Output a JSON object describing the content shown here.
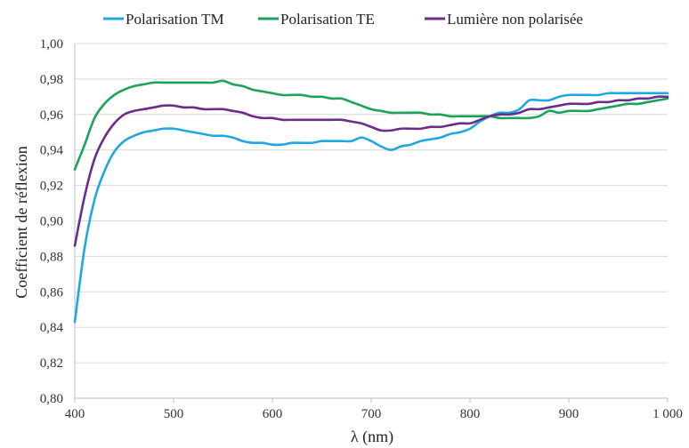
{
  "chart_data": {
    "type": "line",
    "title": "",
    "xlabel": "λ (nm)",
    "ylabel": "Coefficient de réflexion",
    "xlim": [
      400,
      1000
    ],
    "ylim": [
      0.8,
      1.0
    ],
    "x_ticks": [
      400,
      500,
      600,
      700,
      800,
      900,
      1000
    ],
    "x_tick_labels": [
      "400",
      "500",
      "600",
      "700",
      "800",
      "900",
      "1 000"
    ],
    "y_ticks": [
      0.8,
      0.82,
      0.84,
      0.86,
      0.88,
      0.9,
      0.92,
      0.94,
      0.96,
      0.98,
      1.0
    ],
    "y_tick_labels": [
      "0,80",
      "0,82",
      "0,84",
      "0,86",
      "0,88",
      "0,90",
      "0,92",
      "0,94",
      "0,96",
      "0,98",
      "1,00"
    ],
    "grid": "horizontal",
    "legend_position": "top",
    "series": [
      {
        "name": "Polarisation TM",
        "color": "#1fa8e0",
        "x": [
          400,
          410,
          420,
          430,
          440,
          450,
          460,
          470,
          480,
          490,
          500,
          510,
          520,
          530,
          540,
          550,
          560,
          570,
          580,
          590,
          600,
          610,
          620,
          630,
          640,
          650,
          660,
          670,
          680,
          690,
          700,
          710,
          720,
          730,
          740,
          750,
          760,
          770,
          780,
          790,
          800,
          810,
          820,
          830,
          840,
          850,
          860,
          870,
          880,
          890,
          900,
          910,
          920,
          930,
          940,
          950,
          960,
          970,
          980,
          990,
          1000
        ],
        "y": [
          0.843,
          0.885,
          0.912,
          0.928,
          0.939,
          0.945,
          0.948,
          0.95,
          0.951,
          0.952,
          0.952,
          0.951,
          0.95,
          0.949,
          0.948,
          0.948,
          0.947,
          0.945,
          0.944,
          0.944,
          0.943,
          0.943,
          0.944,
          0.944,
          0.944,
          0.945,
          0.945,
          0.945,
          0.945,
          0.947,
          0.945,
          0.942,
          0.94,
          0.942,
          0.943,
          0.945,
          0.946,
          0.947,
          0.949,
          0.95,
          0.952,
          0.956,
          0.959,
          0.961,
          0.961,
          0.963,
          0.968,
          0.968,
          0.968,
          0.97,
          0.971,
          0.971,
          0.971,
          0.971,
          0.972,
          0.972,
          0.972,
          0.972,
          0.972,
          0.972,
          0.972
        ]
      },
      {
        "name": "Polarisation TE",
        "color": "#1aa35a",
        "x": [
          400,
          410,
          420,
          430,
          440,
          450,
          460,
          470,
          480,
          490,
          500,
          510,
          520,
          530,
          540,
          550,
          560,
          570,
          580,
          590,
          600,
          610,
          620,
          630,
          640,
          650,
          660,
          670,
          680,
          690,
          700,
          710,
          720,
          730,
          740,
          750,
          760,
          770,
          780,
          790,
          800,
          810,
          820,
          830,
          840,
          850,
          860,
          870,
          880,
          890,
          900,
          910,
          920,
          930,
          940,
          950,
          960,
          970,
          980,
          990,
          1000
        ],
        "y": [
          0.929,
          0.943,
          0.958,
          0.966,
          0.971,
          0.974,
          0.976,
          0.977,
          0.978,
          0.978,
          0.978,
          0.978,
          0.978,
          0.978,
          0.978,
          0.979,
          0.977,
          0.976,
          0.974,
          0.973,
          0.972,
          0.971,
          0.971,
          0.971,
          0.97,
          0.97,
          0.969,
          0.969,
          0.967,
          0.965,
          0.963,
          0.962,
          0.961,
          0.961,
          0.961,
          0.961,
          0.96,
          0.96,
          0.959,
          0.959,
          0.959,
          0.959,
          0.959,
          0.958,
          0.958,
          0.958,
          0.958,
          0.959,
          0.962,
          0.961,
          0.962,
          0.962,
          0.962,
          0.963,
          0.964,
          0.965,
          0.966,
          0.966,
          0.967,
          0.968,
          0.969
        ]
      },
      {
        "name": "Lumière non polarisée",
        "color": "#6b2d8c",
        "x": [
          400,
          410,
          420,
          430,
          440,
          450,
          460,
          470,
          480,
          490,
          500,
          510,
          520,
          530,
          540,
          550,
          560,
          570,
          580,
          590,
          600,
          610,
          620,
          630,
          640,
          650,
          660,
          670,
          680,
          690,
          700,
          710,
          720,
          730,
          740,
          750,
          760,
          770,
          780,
          790,
          800,
          810,
          820,
          830,
          840,
          850,
          860,
          870,
          880,
          890,
          900,
          910,
          920,
          930,
          940,
          950,
          960,
          970,
          980,
          990,
          1000
        ],
        "y": [
          0.886,
          0.914,
          0.935,
          0.947,
          0.955,
          0.96,
          0.962,
          0.963,
          0.964,
          0.965,
          0.965,
          0.964,
          0.964,
          0.963,
          0.963,
          0.963,
          0.962,
          0.961,
          0.959,
          0.958,
          0.958,
          0.957,
          0.957,
          0.957,
          0.957,
          0.957,
          0.957,
          0.957,
          0.956,
          0.955,
          0.953,
          0.951,
          0.951,
          0.952,
          0.952,
          0.952,
          0.953,
          0.953,
          0.954,
          0.955,
          0.955,
          0.957,
          0.959,
          0.96,
          0.96,
          0.961,
          0.963,
          0.963,
          0.964,
          0.965,
          0.966,
          0.966,
          0.966,
          0.967,
          0.967,
          0.968,
          0.968,
          0.969,
          0.969,
          0.97,
          0.97
        ]
      }
    ]
  }
}
